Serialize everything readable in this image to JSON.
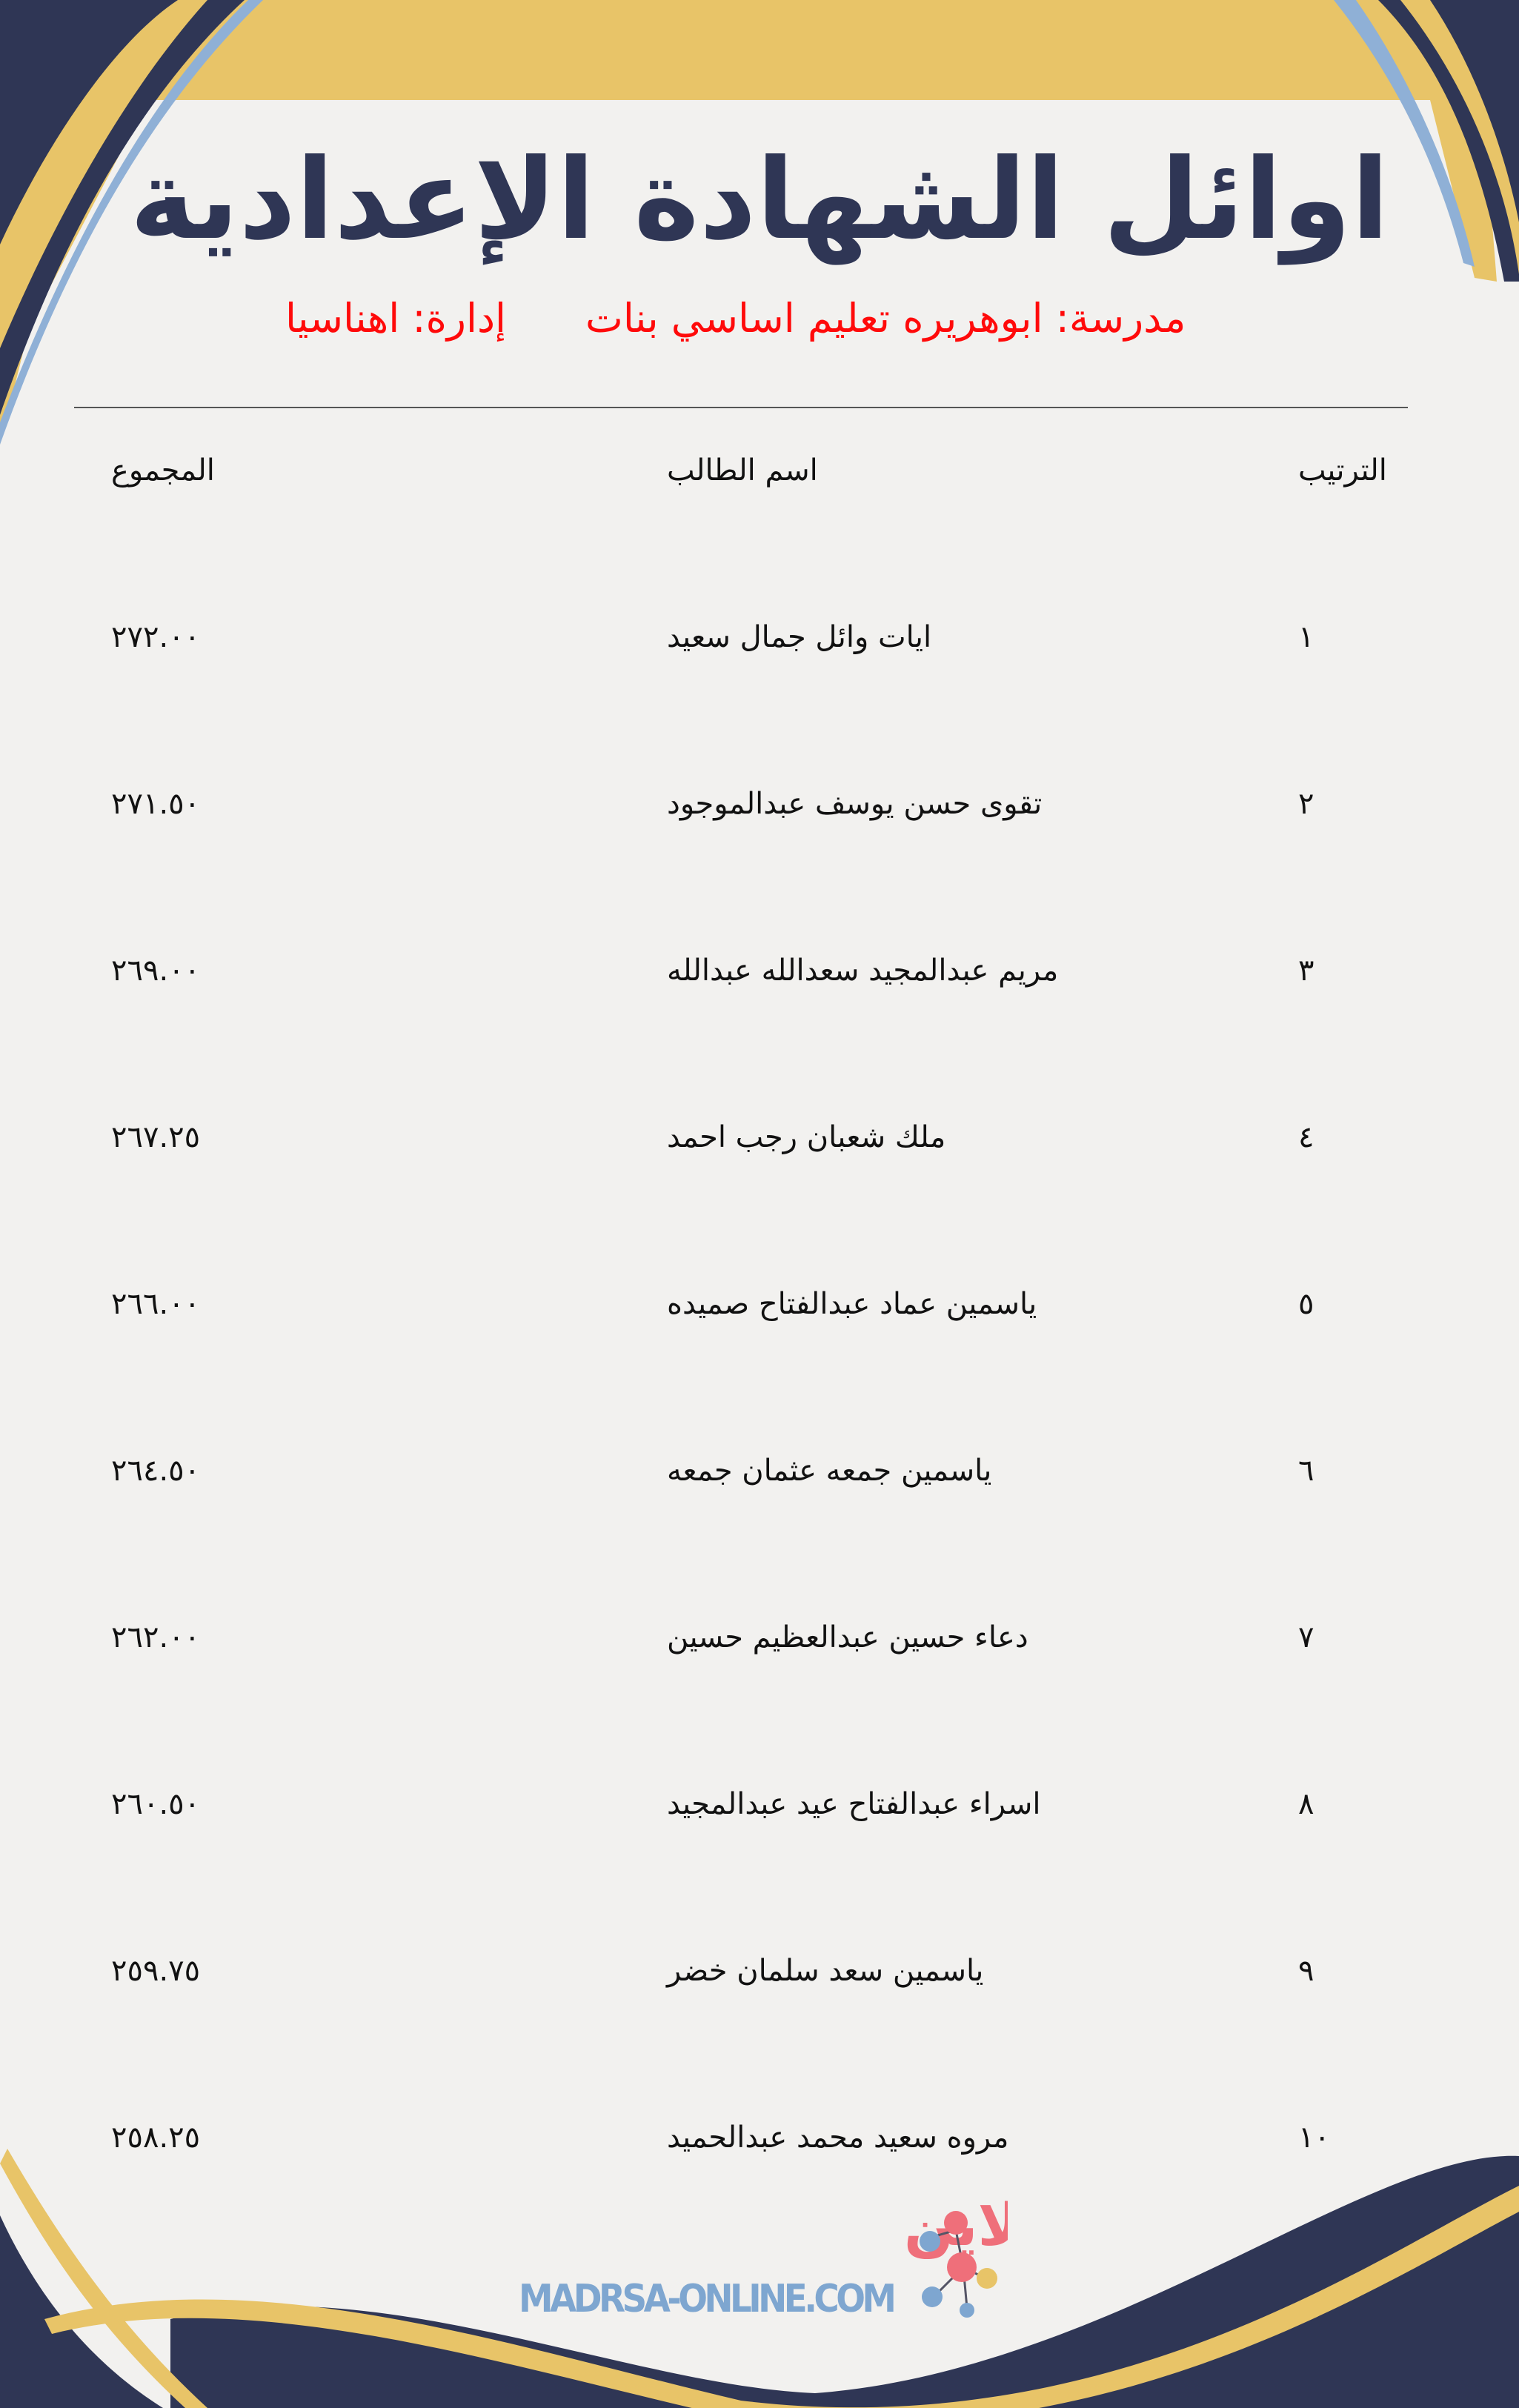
{
  "title": "اوائل الشهادة الإعدادية",
  "school": "مدرسة: ابوهريره تعليم اساسي بنات",
  "administration": "إدارة: اهناسيا",
  "table": {
    "headers": {
      "rank": "الترتيب",
      "name": "اسم الطالب",
      "total": "المجموع"
    },
    "rows": [
      {
        "rank": "١",
        "name": "ايات وائل جمال سعيد",
        "total": "٢٧٢.٠٠"
      },
      {
        "rank": "٢",
        "name": "تقوى حسن يوسف عبدالموجود",
        "total": "٢٧١.٥٠"
      },
      {
        "rank": "٣",
        "name": "مريم عبدالمجيد سعدالله عبدالله",
        "total": "٢٦٩.٠٠"
      },
      {
        "rank": "٤",
        "name": "ملك شعبان رجب احمد",
        "total": "٢٦٧.٢٥"
      },
      {
        "rank": "٥",
        "name": "ياسمين عماد عبدالفتاح صميده",
        "total": "٢٦٦.٠٠"
      },
      {
        "rank": "٦",
        "name": "ياسمين جمعه عثمان جمعه",
        "total": "٢٦٤.٥٠"
      },
      {
        "rank": "٧",
        "name": "دعاء حسين عبدالعظيم حسين",
        "total": "٢٦٢.٠٠"
      },
      {
        "rank": "٨",
        "name": "اسراء عبدالفتاح عيد عبدالمجيد",
        "total": "٢٦٠.٥٠"
      },
      {
        "rank": "٩",
        "name": "ياسمين سعد سلمان خضر",
        "total": "٢٥٩.٧٥"
      },
      {
        "rank": "١٠",
        "name": "مروه سعيد محمد عبدالحميد",
        "total": "٢٥٨.٢٥"
      }
    ]
  },
  "logo": {
    "arabic": "مدرسة اون لاين",
    "latin": "MADRSA-ONLINE.COM"
  },
  "colors": {
    "navy": "#2f3655",
    "gold": "#e8c468",
    "red": "#ff0a0a",
    "paper": "#f2f1ef",
    "logo_pink": "#ef6f7a",
    "logo_blue": "#7ea6d0"
  }
}
